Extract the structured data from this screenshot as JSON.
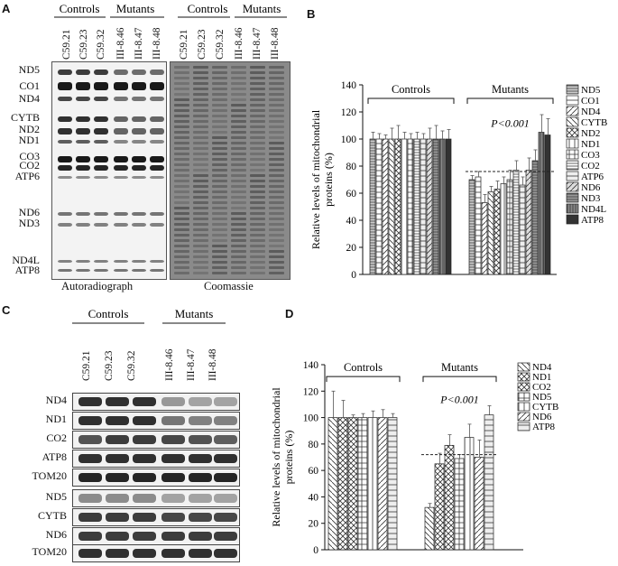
{
  "panels": {
    "a": {
      "label": "A",
      "groups": [
        "Controls",
        "Mutants",
        "Controls",
        "Mutants"
      ],
      "lanes": [
        "C59.21",
        "C59.23",
        "C59.32",
        "III-8.46",
        "III-8.47",
        "III-8.48",
        "C59.21",
        "C59.23",
        "C59.32",
        "III-8.46",
        "III-8.47",
        "III-8.48"
      ],
      "bands": [
        "ND5",
        "CO1",
        "ND4",
        "CYTB",
        "ND2",
        "ND1",
        "CO3",
        "CO2",
        "ATP6",
        "ND6",
        "ND3",
        "ND4L",
        "ATP8"
      ],
      "caption_left": "Autoradiograph",
      "caption_right": "Coomassie"
    },
    "b": {
      "label": "B",
      "group_controls": "Controls",
      "group_mutants": "Mutants",
      "pvalue": "P<0.001",
      "legend": [
        "ND5",
        "CO1",
        "ND4",
        "CYTB",
        "ND2",
        "ND1",
        "CO3",
        "CO2",
        "ATP6",
        "ND6",
        "ND3",
        "ND4L",
        "ATP8"
      ]
    },
    "c": {
      "label": "C",
      "groups": [
        "Controls",
        "Mutants"
      ],
      "lanes": [
        "C59.21",
        "C59.23",
        "C59.32",
        "III-8.46",
        "III-8.47",
        "III-8.48"
      ],
      "rows": [
        "ND4",
        "ND1",
        "CO2",
        "ATP8",
        "TOM20",
        "ND5",
        "CYTB",
        "ND6",
        "TOM20"
      ]
    },
    "d": {
      "label": "D",
      "group_controls": "Controls",
      "group_mutants": "Mutants",
      "pvalue": "P<0.001",
      "legend": [
        "ND4",
        "ND1",
        "CO2",
        "ND5",
        "CYTB",
        "ND6",
        "ATP8"
      ]
    }
  },
  "chart_data": [
    {
      "type": "bar",
      "panel": "B",
      "ylabel": "Relative levels of mitochondrial proteins (%)",
      "ylim": [
        0,
        140
      ],
      "yticks": [
        0,
        20,
        40,
        60,
        80,
        100,
        120,
        140
      ],
      "groups": [
        "Controls",
        "Mutants"
      ],
      "reference_line": 76,
      "series": [
        {
          "name": "ND5",
          "values": [
            100,
            70
          ],
          "errors": [
            5,
            3
          ]
        },
        {
          "name": "CO1",
          "values": [
            100,
            72
          ],
          "errors": [
            4,
            4
          ]
        },
        {
          "name": "ND4",
          "values": [
            100,
            53
          ],
          "errors": [
            3,
            6
          ]
        },
        {
          "name": "CYTB",
          "values": [
            100,
            61
          ],
          "errors": [
            8,
            4
          ]
        },
        {
          "name": "ND2",
          "values": [
            100,
            63
          ],
          "errors": [
            10,
            6
          ]
        },
        {
          "name": "ND1",
          "values": [
            100,
            67
          ],
          "errors": [
            5,
            5
          ]
        },
        {
          "name": "CO3",
          "values": [
            100,
            70
          ],
          "errors": [
            4,
            7
          ]
        },
        {
          "name": "CO2",
          "values": [
            100,
            77
          ],
          "errors": [
            5,
            7
          ]
        },
        {
          "name": "ATP6",
          "values": [
            100,
            66
          ],
          "errors": [
            4,
            6
          ]
        },
        {
          "name": "ND6",
          "values": [
            100,
            77
          ],
          "errors": [
            8,
            9
          ]
        },
        {
          "name": "ND3",
          "values": [
            100,
            84
          ],
          "errors": [
            10,
            8
          ]
        },
        {
          "name": "ND4L",
          "values": [
            100,
            105
          ],
          "errors": [
            6,
            13
          ]
        },
        {
          "name": "ATP8",
          "values": [
            100,
            103
          ],
          "errors": [
            7,
            12
          ]
        }
      ]
    },
    {
      "type": "bar",
      "panel": "D",
      "ylabel": "Relative levels of mitochondrial proteins (%)",
      "ylim": [
        0,
        140
      ],
      "yticks": [
        0,
        20,
        40,
        60,
        80,
        100,
        120,
        140
      ],
      "groups": [
        "Controls",
        "Mutants"
      ],
      "reference_line": 72,
      "series": [
        {
          "name": "ND4",
          "values": [
            100,
            32
          ],
          "errors": [
            20,
            3
          ]
        },
        {
          "name": "ND1",
          "values": [
            100,
            65
          ],
          "errors": [
            13,
            8
          ]
        },
        {
          "name": "CO2",
          "values": [
            100,
            79
          ],
          "errors": [
            2,
            8
          ]
        },
        {
          "name": "ND5",
          "values": [
            100,
            69
          ],
          "errors": [
            3,
            3
          ]
        },
        {
          "name": "CYTB",
          "values": [
            100,
            85
          ],
          "errors": [
            5,
            10
          ]
        },
        {
          "name": "ND6",
          "values": [
            100,
            70
          ],
          "errors": [
            6,
            13
          ]
        },
        {
          "name": "ATP8",
          "values": [
            100,
            102
          ],
          "errors": [
            3,
            7
          ]
        }
      ]
    }
  ]
}
